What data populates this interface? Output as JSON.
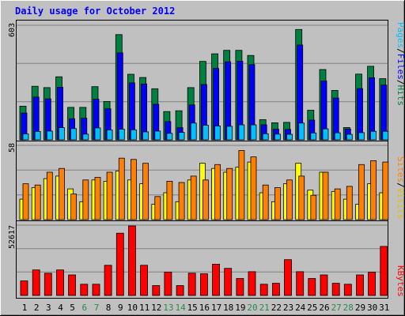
{
  "title": "Daily usage for October 2012",
  "colors": {
    "background": "#c0c0c0",
    "title": "#0000ff",
    "hits": "#008040",
    "files": "#0000ff",
    "pages": "#00c0ff",
    "visits": "#ffff00",
    "sites": "#ff8000",
    "kbytes": "#ff0000",
    "weekday_label": "#000000",
    "weekend_label": "#2a8a4a",
    "separator": "#000000"
  },
  "chart_data": [
    {
      "type": "bar",
      "panel": "top",
      "categories": [
        "1",
        "2",
        "3",
        "4",
        "5",
        "6",
        "7",
        "8",
        "9",
        "10",
        "11",
        "12",
        "13",
        "14",
        "15",
        "16",
        "17",
        "18",
        "19",
        "20",
        "21",
        "22",
        "23",
        "24",
        "25",
        "26",
        "27",
        "28",
        "29",
        "30",
        "31"
      ],
      "weekend_days": [
        "6",
        "7",
        "13",
        "14",
        "20",
        "21",
        "27",
        "28"
      ],
      "ymax_label": "603",
      "ylim": [
        0,
        603
      ],
      "series": [
        {
          "name": "Hits",
          "values": [
            177,
            282,
            275,
            332,
            171,
            171,
            280,
            202,
            554,
            345,
            328,
            269,
            149,
            153,
            275,
            413,
            453,
            471,
            471,
            444,
            106,
            90,
            92,
            581,
            156,
            370,
            260,
            65,
            346,
            387,
            322
          ]
        },
        {
          "name": "Files",
          "values": [
            141,
            225,
            216,
            277,
            111,
            114,
            214,
            164,
            458,
            300,
            294,
            187,
            96,
            64,
            184,
            291,
            376,
            411,
            414,
            396,
            79,
            56,
            55,
            499,
            104,
            310,
            220,
            57,
            270,
            327,
            288
          ]
        },
        {
          "name": "Pages",
          "values": [
            31,
            44,
            46,
            64,
            59,
            30,
            63,
            52,
            56,
            53,
            42,
            46,
            34,
            39,
            88,
            77,
            73,
            71,
            79,
            79,
            32,
            30,
            29,
            88,
            36,
            58,
            37,
            29,
            38,
            45,
            45
          ]
        }
      ],
      "legend": [
        "Pages",
        "Files",
        "Hits"
      ],
      "legend_separator": "/"
    },
    {
      "type": "bar",
      "panel": "middle",
      "categories": [
        "1",
        "2",
        "3",
        "4",
        "5",
        "6",
        "7",
        "8",
        "9",
        "10",
        "11",
        "12",
        "13",
        "14",
        "15",
        "16",
        "17",
        "18",
        "19",
        "20",
        "21",
        "22",
        "23",
        "24",
        "25",
        "26",
        "27",
        "28",
        "29",
        "30",
        "31"
      ],
      "ymax_label": "58",
      "ylim": [
        0,
        58
      ],
      "series": [
        {
          "name": "Visits",
          "values": [
            16,
            25,
            32,
            34,
            24,
            14,
            31,
            30,
            38,
            31,
            28,
            12,
            21,
            14,
            31,
            44,
            40,
            37,
            41,
            45,
            21,
            14,
            28,
            44,
            23,
            37,
            22,
            16,
            12,
            28,
            21
          ]
        },
        {
          "name": "Sites",
          "values": [
            28,
            27,
            37,
            40,
            20,
            31,
            33,
            37,
            48,
            47,
            44,
            18,
            30,
            29,
            34,
            31,
            43,
            40,
            54,
            49,
            27,
            25,
            31,
            34,
            19,
            37,
            24,
            26,
            43,
            46,
            45
          ]
        }
      ],
      "bar_order": [
        "Visits",
        "Sites"
      ],
      "legend": [
        "Sites",
        "Visits"
      ],
      "legend_separator": "/"
    },
    {
      "type": "bar",
      "panel": "bottom",
      "categories": [
        "1",
        "2",
        "3",
        "4",
        "5",
        "6",
        "7",
        "8",
        "9",
        "10",
        "11",
        "12",
        "13",
        "14",
        "15",
        "16",
        "17",
        "18",
        "19",
        "20",
        "21",
        "22",
        "23",
        "24",
        "25",
        "26",
        "27",
        "28",
        "29",
        "30",
        "31"
      ],
      "ymax_label": "52617",
      "ylim": [
        0,
        52617
      ],
      "series": [
        {
          "name": "KBytes",
          "values": [
            10900,
            19100,
            16600,
            19100,
            15400,
            8400,
            8400,
            22600,
            46600,
            52000,
            22600,
            7400,
            17500,
            7400,
            16700,
            16200,
            23400,
            20300,
            12700,
            17800,
            8400,
            9100,
            26800,
            17800,
            12700,
            15400,
            9100,
            8400,
            15400,
            17400,
            36700
          ]
        }
      ],
      "legend": [
        "KBytes"
      ]
    }
  ]
}
